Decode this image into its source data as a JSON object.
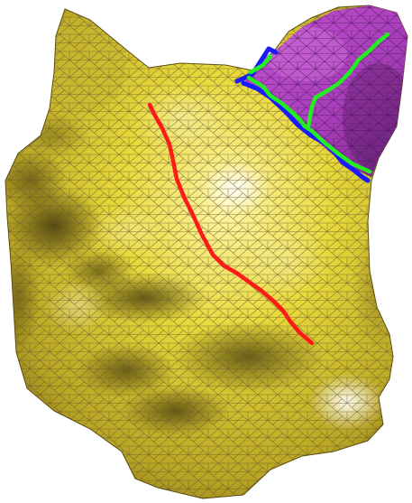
{
  "scene": {
    "background_color": "#ffffff",
    "surface_color": "#e8d93a",
    "surface_shadow_color": "#5a4e10",
    "surface_highlight_color": "#fffbe0",
    "mesh_line_color": "#6b5a2a",
    "segment_color": "#a63cb8",
    "segment_shadow_color": "#5a1e66",
    "curve_colors": {
      "red": "#ff1a1a",
      "green": "#22ee22",
      "blue": "#1a1aff"
    },
    "regions": [
      {
        "name": "head-surface",
        "color_key": "surface_color"
      },
      {
        "name": "ear-segment",
        "color_key": "segment_color"
      }
    ],
    "curves": [
      {
        "name": "red-cut-curve",
        "color_key": "red"
      },
      {
        "name": "green-boundary-curve",
        "color_key": "green"
      },
      {
        "name": "blue-boundary-curve",
        "color_key": "blue"
      }
    ]
  }
}
